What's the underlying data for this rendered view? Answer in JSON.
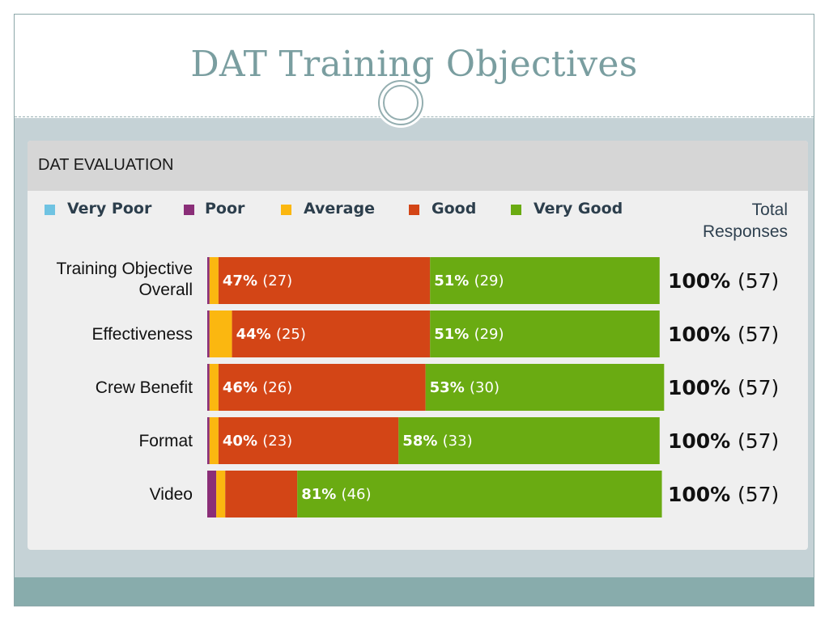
{
  "title": "DAT Training Objectives",
  "panel_title": "DAT EVALUATION",
  "colors": {
    "very_poor": "#6fc3e2",
    "poor": "#8a2e78",
    "average": "#fbb710",
    "good": "#d34516",
    "very_good": "#6aab12"
  },
  "chart_data": {
    "type": "bar",
    "stacked": true,
    "orientation": "horizontal",
    "legend_position": "top",
    "categories": [
      "Training Objective Overall",
      "Effectiveness",
      "Crew Benefit",
      "Format",
      "Video"
    ],
    "series": [
      {
        "name": "Very Poor",
        "values": [
          0,
          0,
          0,
          0,
          0
        ]
      },
      {
        "name": "Poor",
        "values": [
          0.5,
          0.5,
          0.5,
          0.5,
          2
        ]
      },
      {
        "name": "Average",
        "values": [
          2,
          5,
          2,
          2,
          2
        ]
      },
      {
        "name": "Good",
        "values": [
          47,
          44,
          46,
          40,
          16
        ]
      },
      {
        "name": "Very Good",
        "values": [
          51,
          51,
          53,
          58,
          81
        ]
      }
    ],
    "segment_labels": [
      [
        {
          "series": "Good",
          "pct": "47%",
          "count": "(27)"
        },
        {
          "series": "Very Good",
          "pct": "51%",
          "count": "(29)"
        }
      ],
      [
        {
          "series": "Good",
          "pct": "44%",
          "count": "(25)"
        },
        {
          "series": "Very Good",
          "pct": "51%",
          "count": "(29)"
        }
      ],
      [
        {
          "series": "Good",
          "pct": "46%",
          "count": "(26)"
        },
        {
          "series": "Very Good",
          "pct": "53%",
          "count": "(30)"
        }
      ],
      [
        {
          "series": "Good",
          "pct": "40%",
          "count": "(23)"
        },
        {
          "series": "Very Good",
          "pct": "58%",
          "count": "(33)"
        }
      ],
      [
        {
          "series": "Very Good",
          "pct": "81%",
          "count": "(46)"
        }
      ]
    ],
    "totals_header": [
      "Total",
      "Responses"
    ],
    "totals": [
      {
        "pct": "100%",
        "count": "(57)"
      },
      {
        "pct": "100%",
        "count": "(57)"
      },
      {
        "pct": "100%",
        "count": "(57)"
      },
      {
        "pct": "100%",
        "count": "(57)"
      },
      {
        "pct": "100%",
        "count": "(57)"
      }
    ],
    "xlim": [
      0,
      100
    ]
  }
}
